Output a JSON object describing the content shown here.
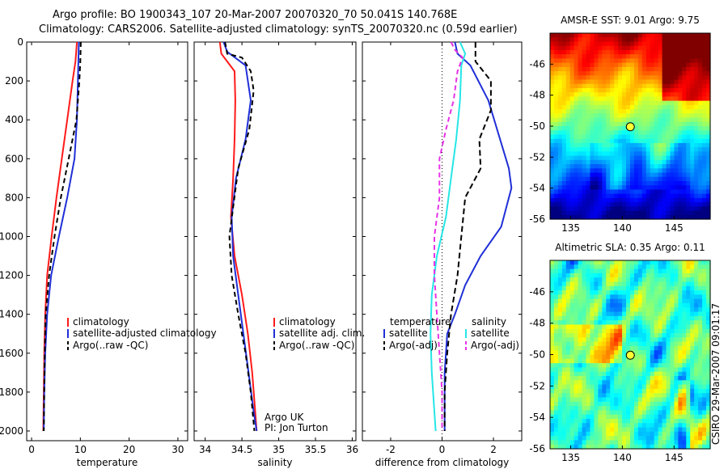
{
  "figure_title_1": "Argo profile: BO 1900343_107 20-Mar-2007 20070320_70 50.041S 140.768E",
  "figure_title_2": "Climatology: CARS2006. Satellite-adjusted climatology: synTS_20070320.nc (0.59d earlier)",
  "side_label": "CSIRO 29-Mar-2007 09:01:17",
  "depth_ticks": [
    "0",
    "200",
    "400",
    "600",
    "800",
    "1000",
    "1200",
    "1400",
    "1600",
    "1800",
    "2000"
  ],
  "depth_tick_values": [
    0,
    200,
    400,
    600,
    800,
    1000,
    1200,
    1400,
    1600,
    1800,
    2000
  ],
  "map_lat_ticks": [
    "-46",
    "-48",
    "-50",
    "-52",
    "-54",
    "-56"
  ],
  "map_lon_ticks": [
    "135",
    "140",
    "145"
  ],
  "colors": {
    "climatology": "#ff1a1a",
    "satellite": "#1f2fd6",
    "argo": "#000000",
    "cyan": "#26e6e6",
    "magenta": "#e632e6"
  },
  "chart_data": [
    {
      "type": "line",
      "xlabel": "temperature",
      "xlim": [
        -1,
        32
      ],
      "ylim": [
        2050,
        0
      ],
      "xticks": [
        "0",
        "10",
        "20",
        "30"
      ],
      "xtick_values": [
        0,
        10,
        20,
        30
      ],
      "legend": [
        "climatology",
        "satellite-adjusted climatology",
        "Argo(..raw -QC)"
      ],
      "series": [
        {
          "name": "climatology",
          "color": "#ff1a1a",
          "dash": "",
          "points": [
            [
              9.3,
              0
            ],
            [
              9.0,
              100
            ],
            [
              8.4,
              200
            ],
            [
              7.3,
              400
            ],
            [
              6.2,
              600
            ],
            [
              5.1,
              800
            ],
            [
              4.1,
              1000
            ],
            [
              3.2,
              1200
            ],
            [
              2.8,
              1400
            ],
            [
              2.6,
              1600
            ],
            [
              2.5,
              1800
            ],
            [
              2.4,
              2000
            ]
          ]
        },
        {
          "name": "satellite-adjusted climatology",
          "color": "#1f2fd6",
          "dash": "",
          "points": [
            [
              9.7,
              0
            ],
            [
              9.6,
              100
            ],
            [
              9.5,
              200
            ],
            [
              9.3,
              400
            ],
            [
              8.8,
              600
            ],
            [
              7.3,
              800
            ],
            [
              5.6,
              1000
            ],
            [
              4.0,
              1200
            ],
            [
              3.2,
              1400
            ],
            [
              2.8,
              1600
            ],
            [
              2.6,
              1800
            ],
            [
              2.5,
              2000
            ]
          ]
        },
        {
          "name": "Argo(..raw -QC)",
          "color": "#000000",
          "dash": "6,4",
          "points": [
            [
              10.1,
              0
            ],
            [
              10.0,
              100
            ],
            [
              9.8,
              200
            ],
            [
              9.2,
              400
            ],
            [
              7.6,
              600
            ],
            [
              6.0,
              800
            ],
            [
              4.7,
              1000
            ],
            [
              3.6,
              1200
            ],
            [
              2.9,
              1400
            ],
            [
              2.7,
              1600
            ],
            [
              2.6,
              1800
            ],
            [
              2.5,
              2000
            ]
          ]
        }
      ]
    },
    {
      "type": "line",
      "xlabel": "salinity",
      "xlim": [
        33.85,
        36.05
      ],
      "ylim": [
        2050,
        0
      ],
      "xticks": [
        "34",
        "34.5",
        "35",
        "35.5",
        "36"
      ],
      "xtick_values": [
        34,
        34.5,
        35,
        35.5,
        36
      ],
      "legend": [
        "climatology",
        "satellite adj. clim.",
        "Argo(..raw -QC)"
      ],
      "annotation": [
        "Argo UK",
        "PI: Jon Turton"
      ],
      "series": [
        {
          "name": "climatology",
          "color": "#ff1a1a",
          "dash": "",
          "points": [
            [
              34.2,
              0
            ],
            [
              34.22,
              60
            ],
            [
              34.4,
              150
            ],
            [
              34.41,
              300
            ],
            [
              34.4,
              500
            ],
            [
              34.38,
              700
            ],
            [
              34.35,
              900
            ],
            [
              34.4,
              1100
            ],
            [
              34.5,
              1300
            ],
            [
              34.58,
              1500
            ],
            [
              34.64,
              1700
            ],
            [
              34.68,
              1900
            ],
            [
              34.7,
              2000
            ]
          ]
        },
        {
          "name": "satellite adj. clim.",
          "color": "#1f2fd6",
          "dash": "",
          "points": [
            [
              34.25,
              0
            ],
            [
              34.3,
              50
            ],
            [
              34.55,
              120
            ],
            [
              34.62,
              300
            ],
            [
              34.55,
              500
            ],
            [
              34.42,
              700
            ],
            [
              34.36,
              900
            ],
            [
              34.38,
              1100
            ],
            [
              34.45,
              1300
            ],
            [
              34.52,
              1500
            ],
            [
              34.59,
              1700
            ],
            [
              34.66,
              1900
            ],
            [
              34.7,
              2000
            ]
          ]
        },
        {
          "name": "Argo(..raw -QC)",
          "color": "#000000",
          "dash": "6,4",
          "points": [
            [
              34.27,
              0
            ],
            [
              34.3,
              60
            ],
            [
              34.5,
              80
            ],
            [
              34.62,
              150
            ],
            [
              34.66,
              250
            ],
            [
              34.6,
              450
            ],
            [
              34.45,
              650
            ],
            [
              34.38,
              850
            ],
            [
              34.33,
              1000
            ],
            [
              34.36,
              1200
            ],
            [
              34.45,
              1400
            ],
            [
              34.55,
              1600
            ],
            [
              34.62,
              1800
            ],
            [
              34.67,
              2000
            ]
          ]
        }
      ]
    },
    {
      "type": "line",
      "xlabel": "difference from climatology",
      "xlim": [
        -3.1,
        3.1
      ],
      "ylim": [
        2050,
        0
      ],
      "xticks": [
        "-2",
        "0",
        "2"
      ],
      "xtick_values": [
        -2,
        0,
        2
      ],
      "legend_left_title": "temperature",
      "legend_right_title": "salinity",
      "legend_left": [
        "satellite",
        "Argo(-adj)"
      ],
      "legend_right": [
        "satellite",
        "Argo(-adj)"
      ],
      "series": [
        {
          "name": "temperature satellite",
          "color": "#1f2fd6",
          "dash": "",
          "points": [
            [
              0.5,
              0
            ],
            [
              0.6,
              60
            ],
            [
              1.1,
              120
            ],
            [
              1.8,
              300
            ],
            [
              2.6,
              650
            ],
            [
              2.7,
              750
            ],
            [
              2.3,
              950
            ],
            [
              1.5,
              1100
            ],
            [
              0.9,
              1250
            ],
            [
              0.5,
              1400
            ],
            [
              0.2,
              1500
            ],
            [
              0.1,
              1700
            ],
            [
              0.1,
              2000
            ]
          ]
        },
        {
          "name": "temperature Argo(-adj)",
          "color": "#000000",
          "dash": "7,4",
          "points": [
            [
              1.3,
              0
            ],
            [
              1.3,
              100
            ],
            [
              1.9,
              200
            ],
            [
              1.9,
              350
            ],
            [
              1.45,
              500
            ],
            [
              1.5,
              650
            ],
            [
              0.9,
              800
            ],
            [
              0.75,
              1000
            ],
            [
              0.6,
              1200
            ],
            [
              0.35,
              1400
            ],
            [
              0.2,
              1600
            ],
            [
              0.1,
              1800
            ],
            [
              0.1,
              2000
            ]
          ]
        },
        {
          "name": "salinity satellite",
          "color": "#26e6e6",
          "dash": "",
          "points": [
            [
              0.7,
              0
            ],
            [
              0.9,
              60
            ],
            [
              0.75,
              120
            ],
            [
              0.7,
              300
            ],
            [
              0.55,
              500
            ],
            [
              0.35,
              700
            ],
            [
              0.15,
              900
            ],
            [
              -0.2,
              1100
            ],
            [
              -0.4,
              1300
            ],
            [
              -0.45,
              1500
            ],
            [
              -0.4,
              1700
            ],
            [
              -0.3,
              1900
            ],
            [
              -0.25,
              2000
            ]
          ]
        },
        {
          "name": "salinity Argo(-adj)",
          "color": "#e632e6",
          "dash": "6,4",
          "points": [
            [
              0.35,
              0
            ],
            [
              0.5,
              40
            ],
            [
              0.8,
              80
            ],
            [
              0.6,
              150
            ],
            [
              0.45,
              300
            ],
            [
              0.15,
              450
            ],
            [
              -0.1,
              600
            ],
            [
              -0.1,
              800
            ],
            [
              -0.3,
              1000
            ],
            [
              -0.3,
              1200
            ],
            [
              -0.2,
              1400
            ],
            [
              -0.1,
              1600
            ],
            [
              0,
              1800
            ],
            [
              0,
              2000
            ]
          ]
        }
      ]
    },
    {
      "type": "heatmap",
      "title": "AMSR-E SST: 9.01 Argo: 9.75",
      "xlim": [
        133,
        148.5
      ],
      "ylim": [
        -56,
        -44
      ]
    },
    {
      "type": "heatmap",
      "title": "Altimetric SLA: 0.35 Argo: 0.11",
      "xlim": [
        133,
        148.5
      ],
      "ylim": [
        -56,
        -44
      ]
    }
  ]
}
